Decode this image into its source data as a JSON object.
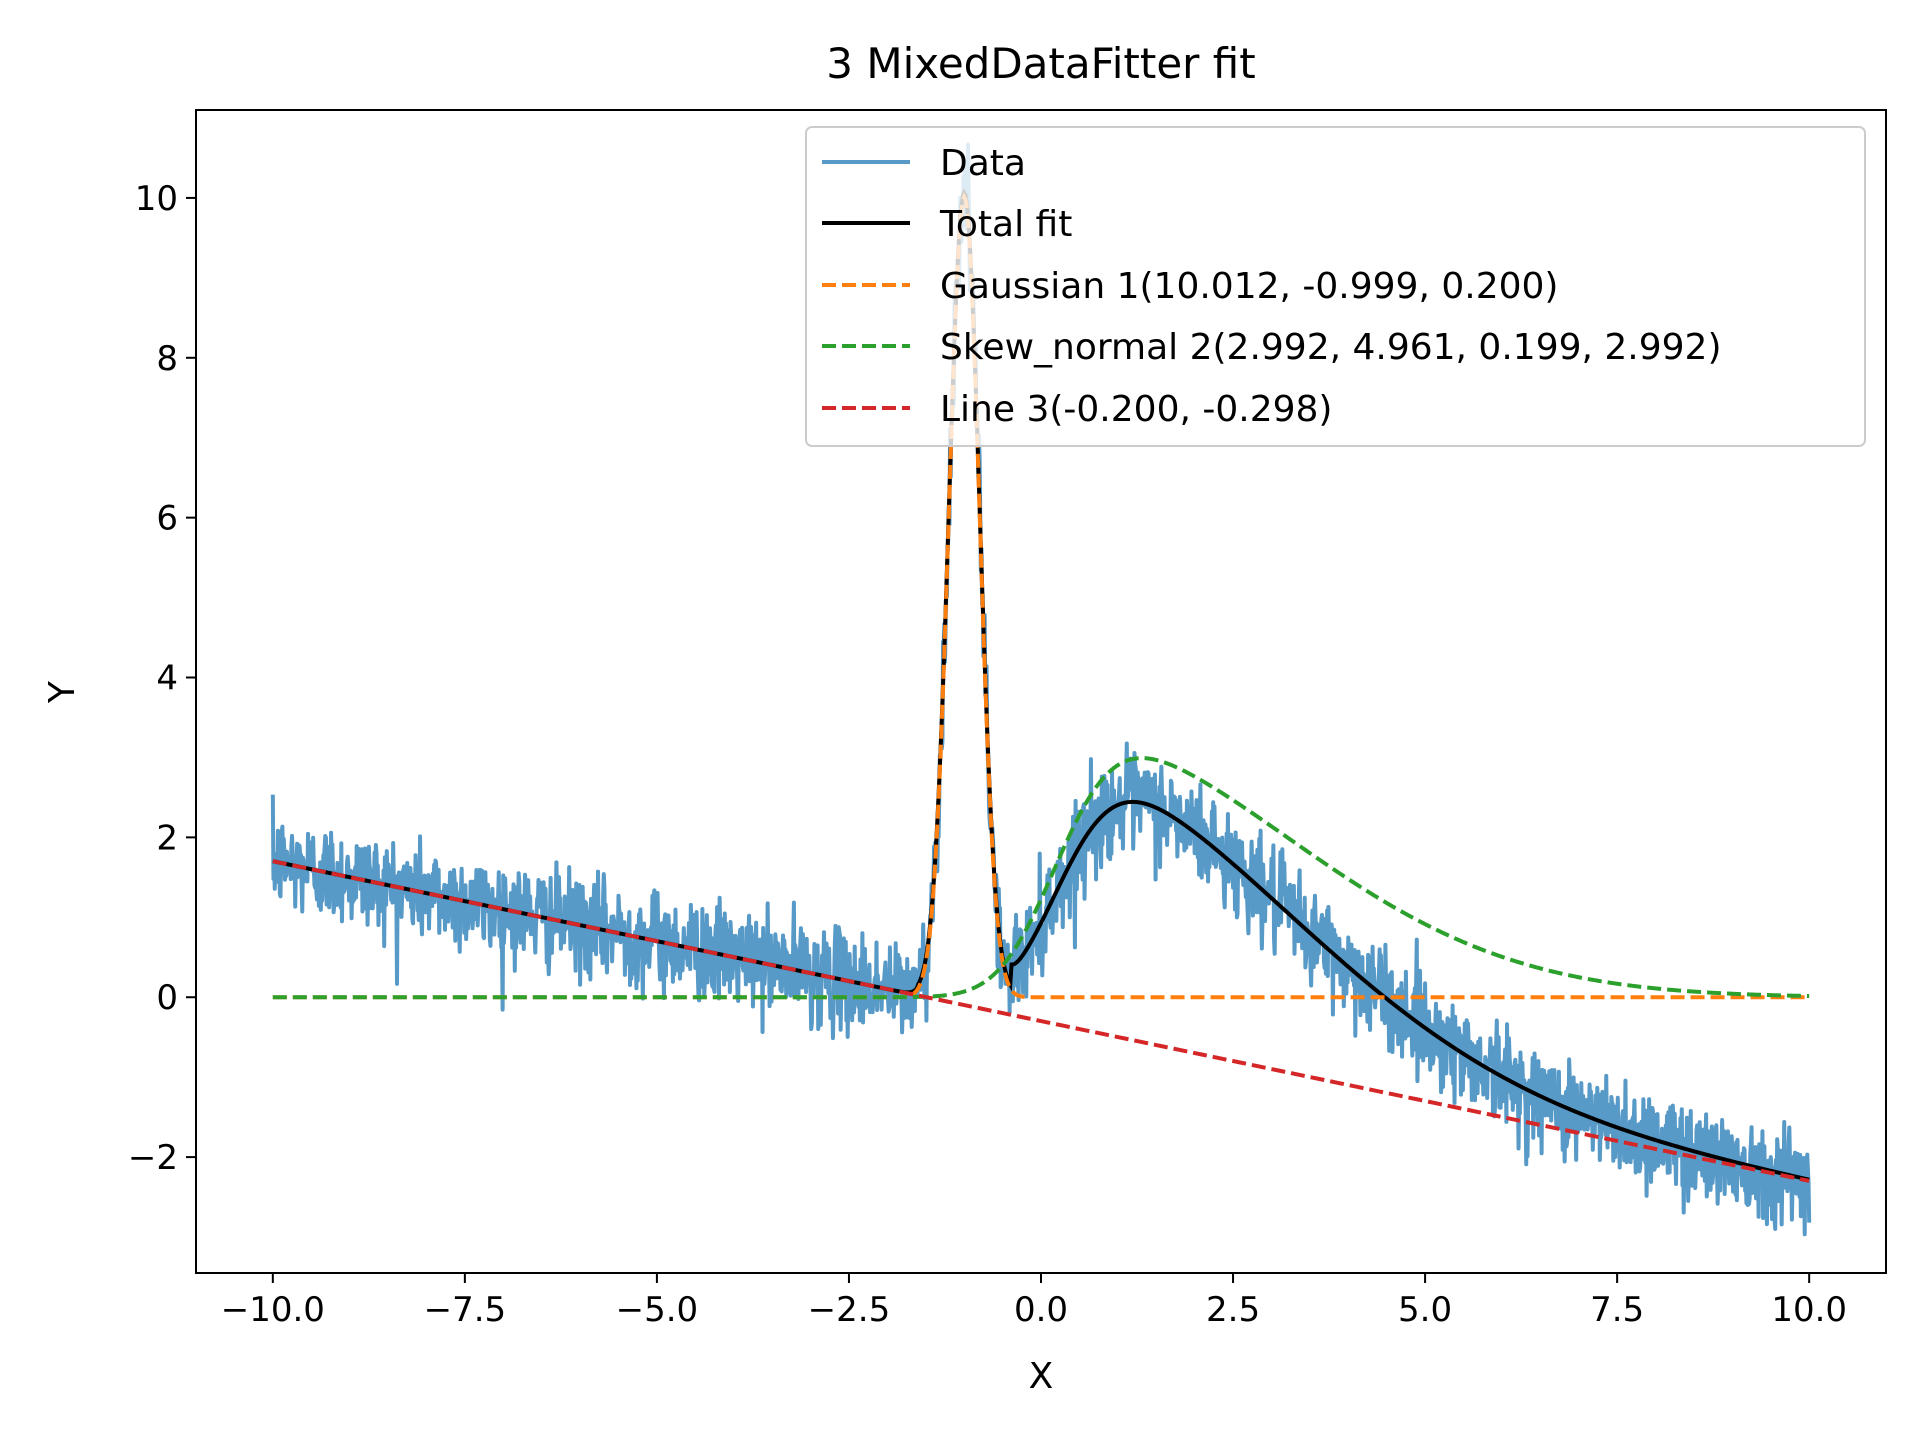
{
  "chart_data": {
    "type": "line",
    "title": "3 MixedDataFitter fit",
    "xlabel": "X",
    "ylabel": "Y",
    "xlim": [
      -11.0,
      11.0
    ],
    "ylim": [
      -3.45,
      11.1
    ],
    "xticks": [
      -10.0,
      -7.5,
      -5.0,
      -2.5,
      0.0,
      2.5,
      5.0,
      7.5,
      10.0
    ],
    "xtick_labels": [
      "−10.0",
      "−7.5",
      "−5.0",
      "−2.5",
      "0.0",
      "2.5",
      "5.0",
      "7.5",
      "10.0"
    ],
    "yticks": [
      -2,
      0,
      2,
      4,
      6,
      8,
      10
    ],
    "ytick_labels": [
      "−2",
      "0",
      "2",
      "4",
      "6",
      "8",
      "10"
    ],
    "grid": false,
    "legend_position": "top-right",
    "data_x_range": [
      -10.0,
      10.0
    ],
    "noise_std": 0.3,
    "series": [
      {
        "name": "Data",
        "color": "#5799c7",
        "style": "solid",
        "role": "noisy-data"
      },
      {
        "name": "Total fit",
        "color": "#000000",
        "style": "solid",
        "role": "total"
      },
      {
        "name": "Gaussian 1(10.012, -0.999, 0.200)",
        "color": "#ff7f0e",
        "style": "dashed",
        "role": "gaussian",
        "params": {
          "amplitude": 10.012,
          "center": -0.999,
          "sigma": 0.2
        }
      },
      {
        "name": "Skew_normal 2(2.992, 4.961, 0.199, 2.992)",
        "color": "#2ca02c",
        "style": "dashed",
        "role": "skew_normal",
        "params": {
          "peak": 2.992,
          "shape": 4.961,
          "location": 0.199,
          "scale": 2.992
        }
      },
      {
        "name": "Line 3(-0.200, -0.298)",
        "color": "#d62728",
        "style": "dashed",
        "role": "line",
        "params": {
          "slope": -0.2,
          "intercept": -0.298
        }
      }
    ]
  }
}
